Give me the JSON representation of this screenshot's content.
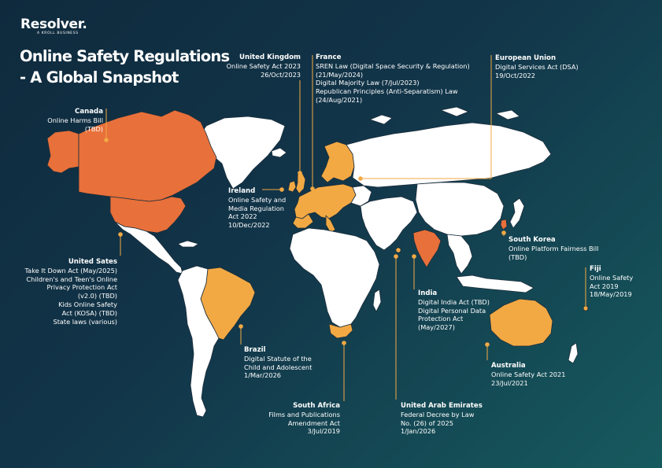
{
  "brand": {
    "name": "Resolver.",
    "tagline": "A KROLL BUSINESS"
  },
  "title": {
    "line1": "Online Safety Regulations",
    "line2": "- A Global Snapshot"
  },
  "colors": {
    "highlight_orange": "#e8703a",
    "highlight_amber": "#f2a944",
    "land": "#ffffff",
    "border": "#1b2e3c",
    "leader": "#f2a944"
  },
  "annotations": {
    "uk": {
      "heading": "United Kingdom",
      "lines": [
        "Online Safety Act 2023",
        "26/Oct/2023"
      ]
    },
    "france": {
      "heading": "France",
      "lines": [
        "SREN Law (Digital Space Security & Regulation)",
        "(21/May/2024)",
        "Digital Majority Law (7/Jul/2023)",
        "Republican Principles (Anti-Separatism) Law",
        "(24/Aug/2021)"
      ]
    },
    "eu": {
      "heading": "European Union",
      "lines": [
        "Digital Services Act (DSA)",
        "19/Oct/2022"
      ]
    },
    "canada": {
      "heading": "Canada",
      "lines": [
        "Online Harms Bill",
        "(TBD)"
      ]
    },
    "ireland": {
      "heading": "Ireland",
      "lines": [
        "Online Safety and",
        "Media Regulation",
        "Act 2022",
        "10/Dec/2022"
      ]
    },
    "us": {
      "heading": "United Sates",
      "lines": [
        "Take It Down Act (May/2025)",
        "Children's and Teen's Online",
        "Privacy Protection Act",
        "(v2.0) (TBD)",
        "Kids Online Safety",
        "Act (KOSA) (TBD)",
        "State laws (various)"
      ]
    },
    "south_korea": {
      "heading": "South Korea",
      "lines": [
        "Online Platform Fairness Bill",
        "(TBD)"
      ]
    },
    "fiji": {
      "heading": "Fiji",
      "lines": [
        "Online Safety",
        "Act 2019",
        "18/May/2019"
      ]
    },
    "india": {
      "heading": "India",
      "lines": [
        "Digital India Act (TBD)",
        "Digital Personal Data",
        "Protection Act",
        "(May/2027)"
      ]
    },
    "brazil": {
      "heading": "Brazil",
      "lines": [
        "Digital Statute of the",
        "Child and Adolescent",
        "1/Mar/2026"
      ]
    },
    "australia": {
      "heading": "Australia",
      "lines": [
        "Online Safety Act 2021",
        "23/Jul/2021"
      ]
    },
    "south_africa": {
      "heading": "South Africa",
      "lines": [
        "Films and Publications",
        "Amendment Act",
        "3/Jul/2019"
      ]
    },
    "uae": {
      "heading": "United Arab Emirates",
      "lines": [
        "Federal Decree by Law",
        "No. (26) of 2025",
        "1/Jan/2026"
      ]
    }
  }
}
